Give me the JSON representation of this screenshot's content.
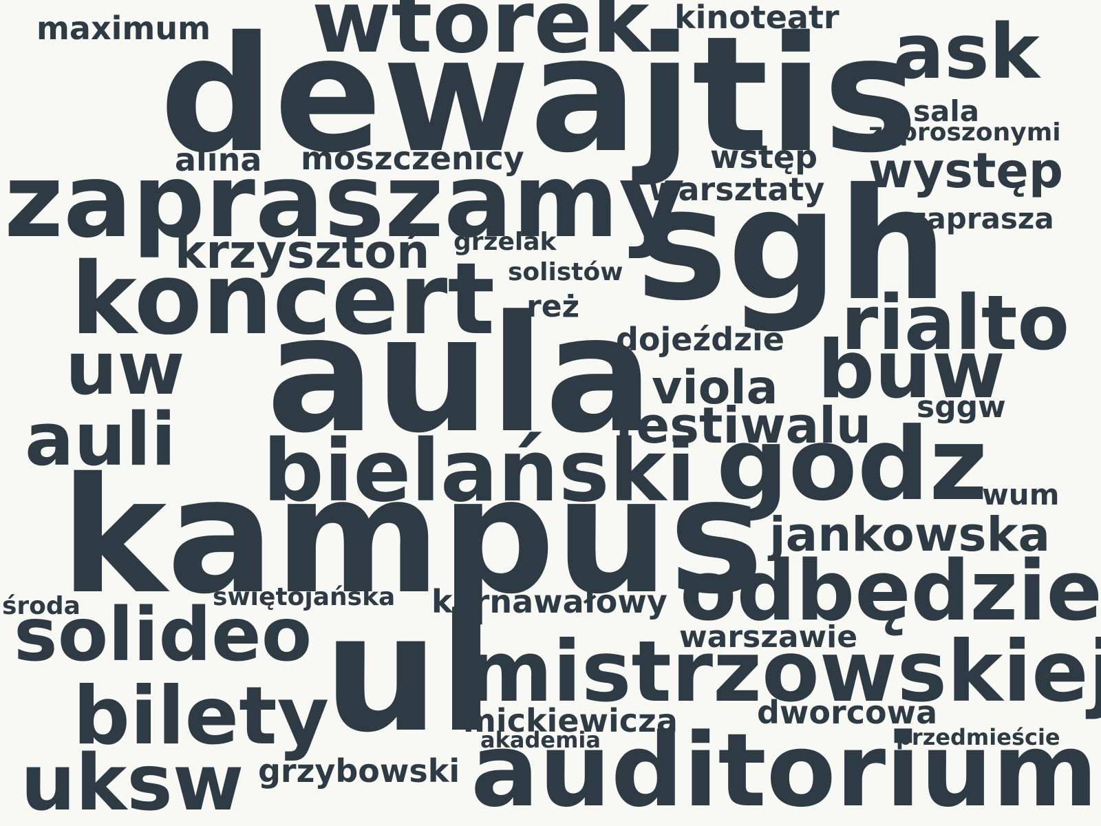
{
  "word_color": "#2e3b44",
  "background_color": "#f8f8f5",
  "words": {
    "dewajtis": "dewajtis",
    "kampus": "kampus",
    "aula": "aula",
    "ul": "ul",
    "sgh": "sgh",
    "zapraszamy": "zapraszamy",
    "wtorek": "wtorek",
    "koncert": "koncert",
    "godz": "godz",
    "bielanski": "bielański",
    "mistrzowskiej": "mistrzowskiej",
    "auditorium": "auditorium",
    "odbedzie": "odbędzie",
    "rialto": "rialto",
    "buw": "buw",
    "ask": "ask",
    "uw": "uw",
    "auli": "auli",
    "solideo": "solideo",
    "bilety": "bilety",
    "uksw": "uksw",
    "festiwalu": "festiwalu",
    "viola": "viola",
    "jankowska": "jankowska",
    "wystep": "występ",
    "krzyszton": "krzysztoń",
    "mickiewicza": "mickiewicza",
    "dworcowa": "dworcowa",
    "karnawalowy": "karnawałowy",
    "warszawie": "warszawie",
    "grzybowski": "grzybowski",
    "moszczenicy": "moszczenicy",
    "alina": "alina",
    "maximum": "maximum",
    "kinoteatr": "kinoteatr",
    "wstep": "wstęp",
    "warsztaty": "warsztaty",
    "zaprasza": "zaprasza",
    "sala": "sala",
    "zaproszonymi": "zaproszonymi",
    "dojezdzie": "dojeździe",
    "sggw": "sggw",
    "wum": "wum",
    "grzelak": "grzelak",
    "solistow": "solistów",
    "rez": "reż",
    "swietojanska": "świętojańska",
    "sroda": "środa",
    "akademia": "akademia",
    "przedmiescie": "przedmieście"
  }
}
